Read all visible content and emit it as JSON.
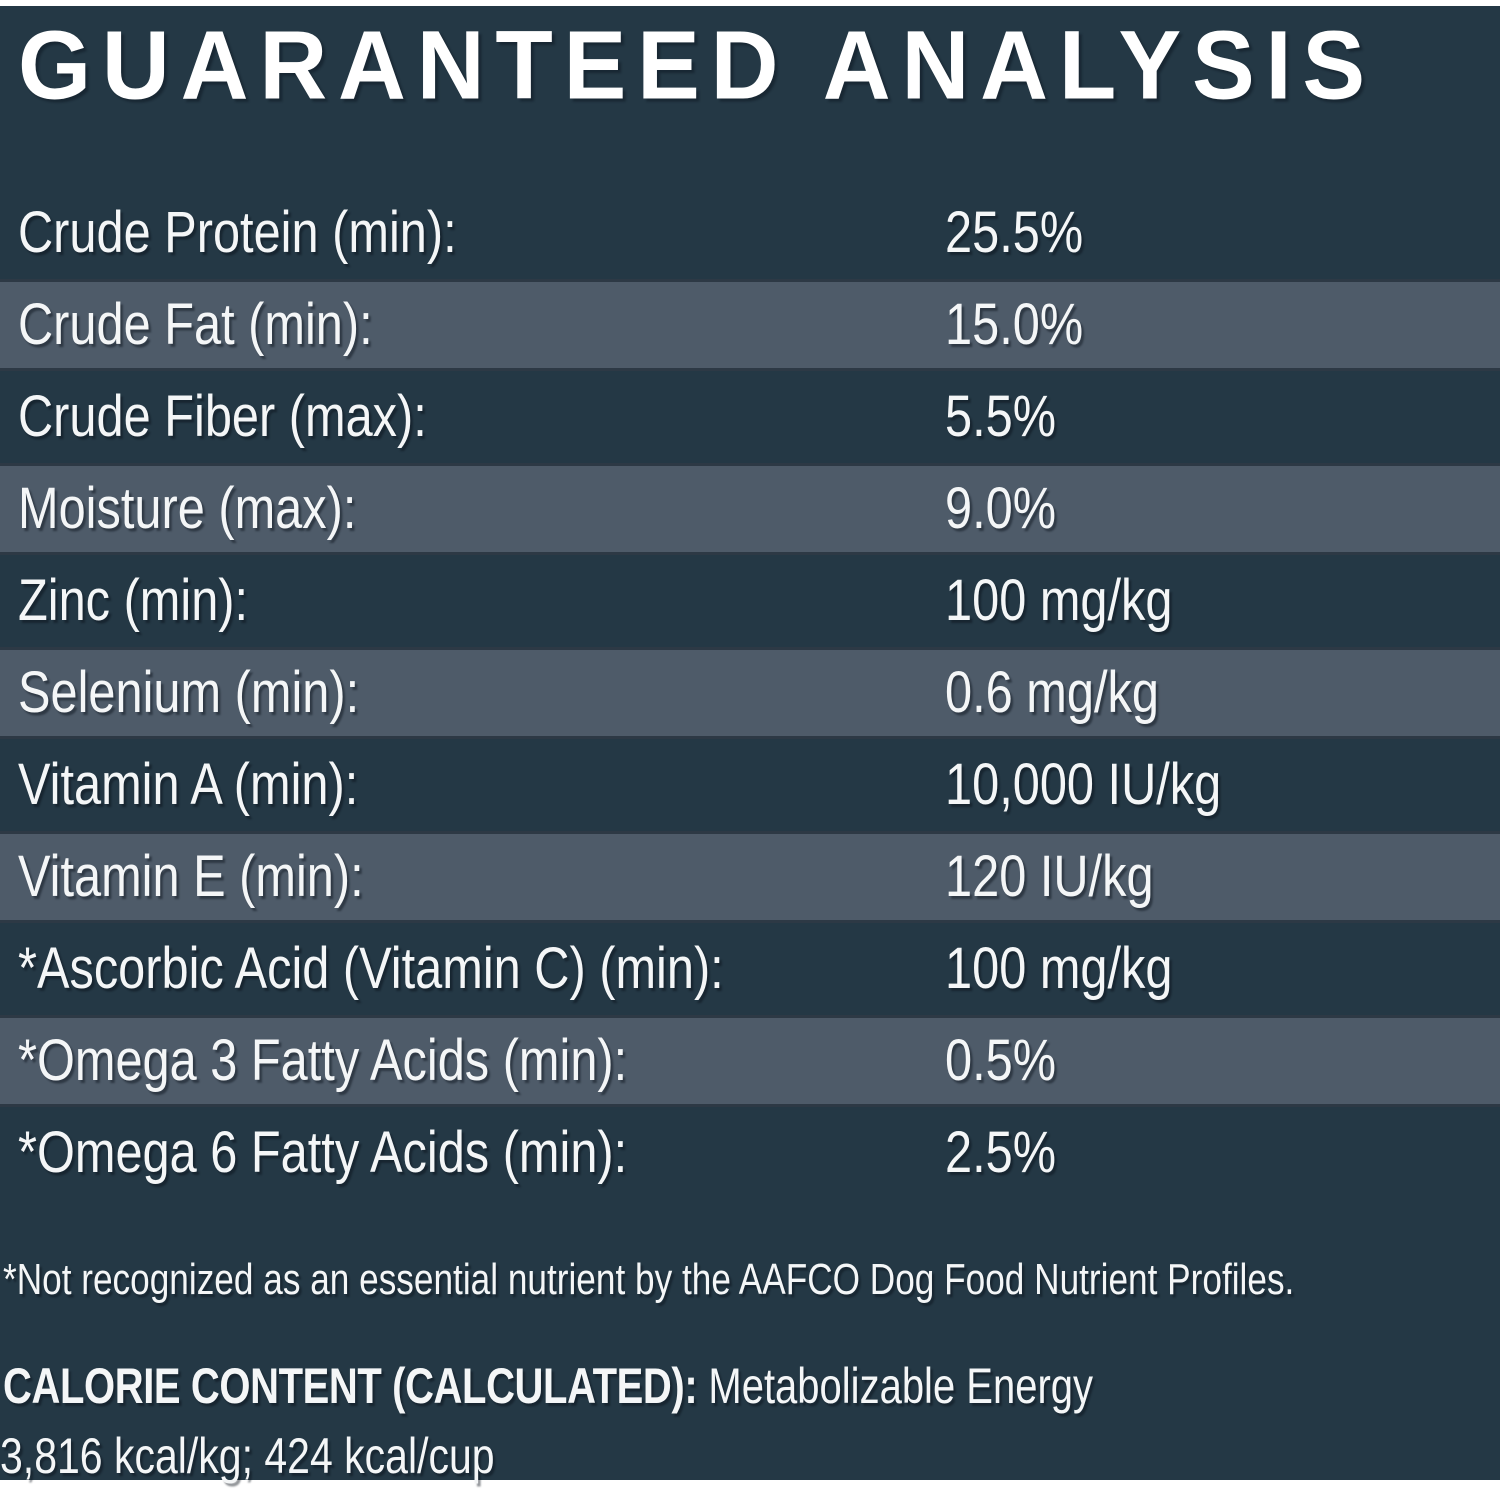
{
  "title": "GUARANTEED ANALYSIS",
  "table": {
    "rows": [
      {
        "label": "Crude Protein (min):",
        "value": "25.5%"
      },
      {
        "label": "Crude Fat (min):",
        "value": "15.0%"
      },
      {
        "label": "Crude Fiber (max):",
        "value": "5.5%"
      },
      {
        "label": "Moisture (max):",
        "value": "9.0%"
      },
      {
        "label": "Zinc (min):",
        "value": "100 mg/kg"
      },
      {
        "label": "Selenium (min):",
        "value": "0.6 mg/kg"
      },
      {
        "label": "Vitamin A (min):",
        "value": "10,000 IU/kg"
      },
      {
        "label": "Vitamin E (min):",
        "value": "120 IU/kg"
      },
      {
        "label": "*Ascorbic Acid (Vitamin C) (min):",
        "value": "100 mg/kg"
      },
      {
        "label": "*Omega 3 Fatty Acids (min):",
        "value": "0.5%"
      },
      {
        "label": "*Omega 6 Fatty Acids (min):",
        "value": "2.5%"
      }
    ]
  },
  "footnote": "*Not recognized as an essential nutrient by the AAFCO Dog Food Nutrient Profiles.",
  "calorie": {
    "heading": "CALORIE CONTENT (CALCULATED):",
    "description": "Metabolizable Energy",
    "values": "3,816 kcal/kg; 424 kcal/cup"
  },
  "colors": {
    "panel_bg": "#243845",
    "stripe_bg": "#4e5b69",
    "text": "#f4f6f7"
  }
}
